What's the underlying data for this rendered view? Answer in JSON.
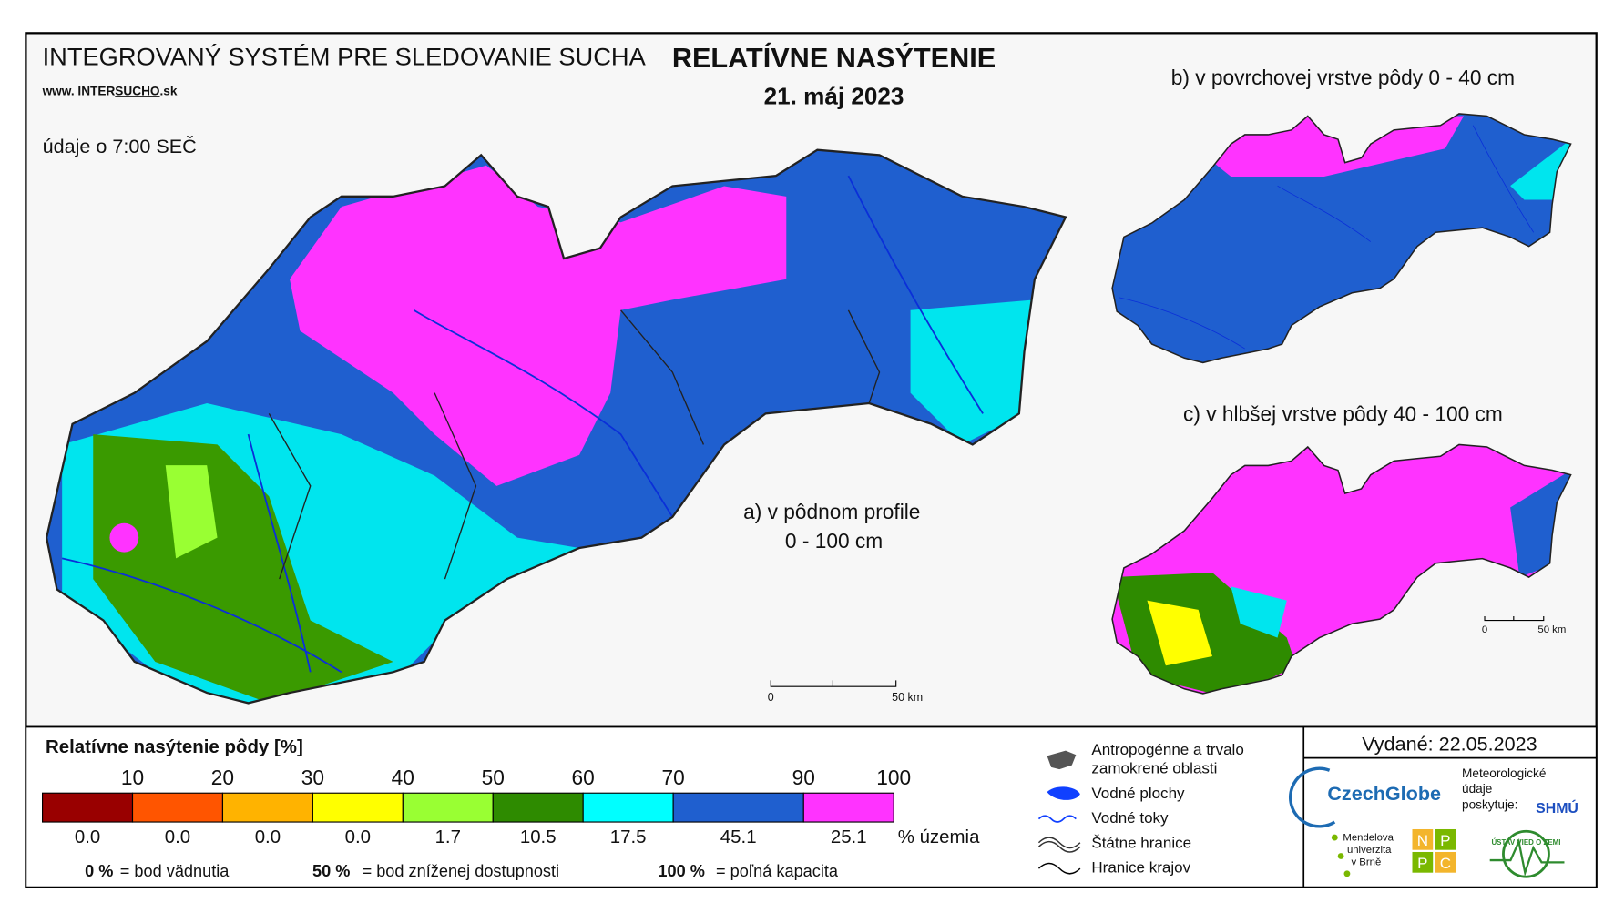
{
  "header": {
    "system": "INTEGROVANÝ SYSTÉM PRE SLEDOVANIE SUCHA",
    "web_prefix": "www. INTER",
    "web_highlight": "SUCHO",
    "web_suffix": ".sk",
    "time_note": "údaje o 7:00 SEČ"
  },
  "title": "RELATÍVNE NASÝTENIE",
  "date": "21. máj 2023",
  "maps": {
    "a_label": "a) v pôdnom profile",
    "a_depth": "0 - 100 cm",
    "b_label": "b) v povrchovej vrstve pôdy 0 - 40 cm",
    "c_label": "c) v hlbšej vrstve pôdy 40 - 100 cm",
    "scale_zero": "0",
    "scale_km": "50 km"
  },
  "legend": {
    "title": "Relatívne nasýtenie pôdy [%]",
    "breaks": [
      "10",
      "20",
      "30",
      "40",
      "50",
      "60",
      "70",
      "90",
      "100"
    ],
    "classes": [
      {
        "color": "#990000",
        "share": "0.0"
      },
      {
        "color": "#ff5500",
        "share": "0.0"
      },
      {
        "color": "#ffb300",
        "share": "0.0"
      },
      {
        "color": "#ffff00",
        "share": "0.0"
      },
      {
        "color": "#99ff33",
        "share": "1.7"
      },
      {
        "color": "#2e8b00",
        "share": "10.5"
      },
      {
        "color": "#00ffff",
        "share": "17.5"
      },
      {
        "color": "#1f5fcf",
        "share": "45.1"
      },
      {
        "color": "#ff33ff",
        "share": "25.1"
      }
    ],
    "share_unit": "% územia",
    "notes": [
      {
        "value": "0 %",
        "text": "= bod vädnutia"
      },
      {
        "value": "50 %",
        "text": "= bod zníženej dostupnosti"
      },
      {
        "value": "100 %",
        "text": "= poľná kapacita"
      }
    ]
  },
  "symbols": {
    "wetland_1": "Antropogénne a trvalo",
    "wetland_2": "zamokrené oblasti",
    "water_bodies": "Vodné plochy",
    "rivers": "Vodné toky",
    "state_border": "Štátne hranice",
    "region_border": "Hranice krajov"
  },
  "issued": "Vydané: 22.05.2023",
  "logos": {
    "czechglobe": "CzechGlobe",
    "meteo_1": "Meteorologické",
    "meteo_2": "údaje",
    "meteo_3": "poskytuje:",
    "shmu": "SHMÚ",
    "mendel_1": "Mendelova",
    "mendel_2": "univerzita",
    "mendel_3": "v Brně",
    "nppc": [
      "N",
      "P",
      "P",
      "C"
    ],
    "uvz": "ÚSTAV VIED O ZEMI"
  }
}
